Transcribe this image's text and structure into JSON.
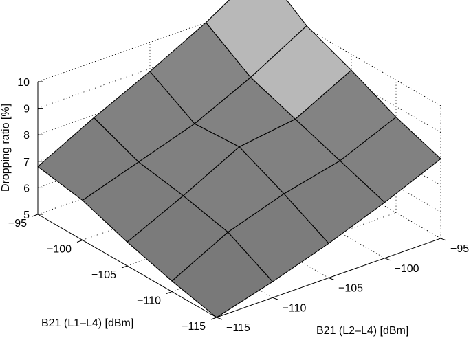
{
  "chart_data": {
    "type": "surface3d",
    "title": "",
    "xlabel": "B21 (L1–L4) [dBm]",
    "ylabel": "B21 (L2–L4) [dBm]",
    "zlabel": "Dropping ratio [%]",
    "x_ticks": [
      "−95",
      "−100",
      "−105",
      "−110",
      "−115"
    ],
    "y_ticks": [
      "−115",
      "−110",
      "−105",
      "−100",
      "−95"
    ],
    "z_ticks": [
      "5",
      "6",
      "7",
      "8",
      "9",
      "10"
    ],
    "x_range": [
      -115,
      -95
    ],
    "y_range": [
      -115,
      -95
    ],
    "z_range": [
      5,
      10
    ],
    "x": [
      -115,
      -110,
      -105,
      -100,
      -95
    ],
    "y": [
      -115,
      -110,
      -105,
      -100,
      -95
    ],
    "z_rows_by_x": [
      [
        5.0,
        5.6,
        6.3,
        7.1,
        8.0
      ],
      [
        5.4,
        6.5,
        7.2,
        7.7,
        8.6
      ],
      [
        5.9,
        6.9,
        8.0,
        8.3,
        9.4
      ],
      [
        6.5,
        7.2,
        7.9,
        8.9,
        10.1
      ],
      [
        6.8,
        7.9,
        8.9,
        10.0,
        11.3
      ]
    ],
    "grid": true,
    "colors": {
      "face_dark": "#777777",
      "face_light": "#b8b8b8"
    }
  }
}
